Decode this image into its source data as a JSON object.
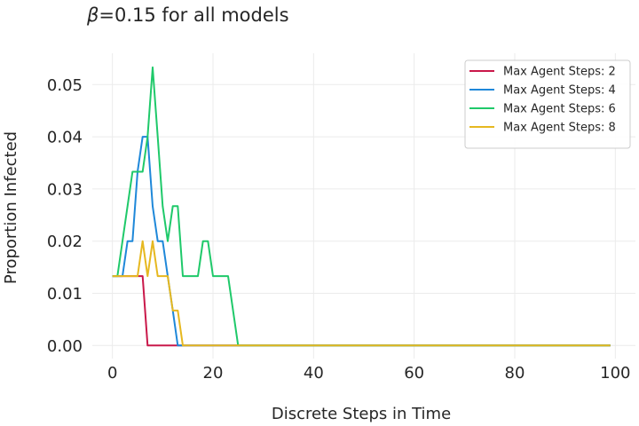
{
  "chart_data": {
    "type": "line",
    "title_symbol": "β",
    "title_rest": "=0.15 for all models",
    "xlabel": "Discrete Steps in Time",
    "ylabel": "Proportion Infected",
    "xlim": [
      -4,
      104
    ],
    "ylim": [
      -0.0025,
      0.056
    ],
    "xticks": [
      0,
      20,
      40,
      60,
      80,
      100
    ],
    "yticks": [
      0.0,
      0.01,
      0.02,
      0.03,
      0.04,
      0.05
    ],
    "xtick_labels": [
      "0",
      "20",
      "40",
      "60",
      "80",
      "100"
    ],
    "ytick_labels": [
      "0.00",
      "0.01",
      "0.02",
      "0.03",
      "0.04",
      "0.05"
    ],
    "grid": true,
    "legend_position": "top-right",
    "series": [
      {
        "name": "Max Agent Steps: 2",
        "color": "#c9184a",
        "points": [
          [
            0,
            0.0133
          ],
          [
            6,
            0.0133
          ],
          [
            7,
            0.0
          ],
          [
            99,
            0.0
          ]
        ]
      },
      {
        "name": "Max Agent Steps: 4",
        "color": "#1f88d9",
        "points": [
          [
            0,
            0.0133
          ],
          [
            2,
            0.0133
          ],
          [
            3,
            0.02
          ],
          [
            4,
            0.02
          ],
          [
            5,
            0.0333
          ],
          [
            6,
            0.04
          ],
          [
            7,
            0.04
          ],
          [
            8,
            0.0267
          ],
          [
            9,
            0.02
          ],
          [
            10,
            0.02
          ],
          [
            11,
            0.0133
          ],
          [
            12,
            0.0067
          ],
          [
            13,
            0.0
          ],
          [
            99,
            0.0
          ]
        ]
      },
      {
        "name": "Max Agent Steps: 6",
        "color": "#1fc96a",
        "points": [
          [
            0,
            0.0133
          ],
          [
            1,
            0.0133
          ],
          [
            3,
            0.0267
          ],
          [
            4,
            0.0333
          ],
          [
            6,
            0.0333
          ],
          [
            7,
            0.04
          ],
          [
            8,
            0.0533
          ],
          [
            9,
            0.04
          ],
          [
            10,
            0.0267
          ],
          [
            11,
            0.02
          ],
          [
            12,
            0.0267
          ],
          [
            13,
            0.0267
          ],
          [
            14,
            0.0133
          ],
          [
            17,
            0.0133
          ],
          [
            18,
            0.02
          ],
          [
            19,
            0.02
          ],
          [
            20,
            0.0133
          ],
          [
            23,
            0.0133
          ],
          [
            25,
            0.0
          ],
          [
            99,
            0.0
          ]
        ]
      },
      {
        "name": "Max Agent Steps: 8",
        "color": "#e6b820",
        "points": [
          [
            0,
            0.0133
          ],
          [
            5,
            0.0133
          ],
          [
            6,
            0.02
          ],
          [
            7,
            0.0133
          ],
          [
            8,
            0.02
          ],
          [
            9,
            0.0133
          ],
          [
            11,
            0.0133
          ],
          [
            12,
            0.0067
          ],
          [
            13,
            0.0067
          ],
          [
            14,
            0.0
          ],
          [
            99,
            0.0
          ]
        ]
      }
    ]
  }
}
